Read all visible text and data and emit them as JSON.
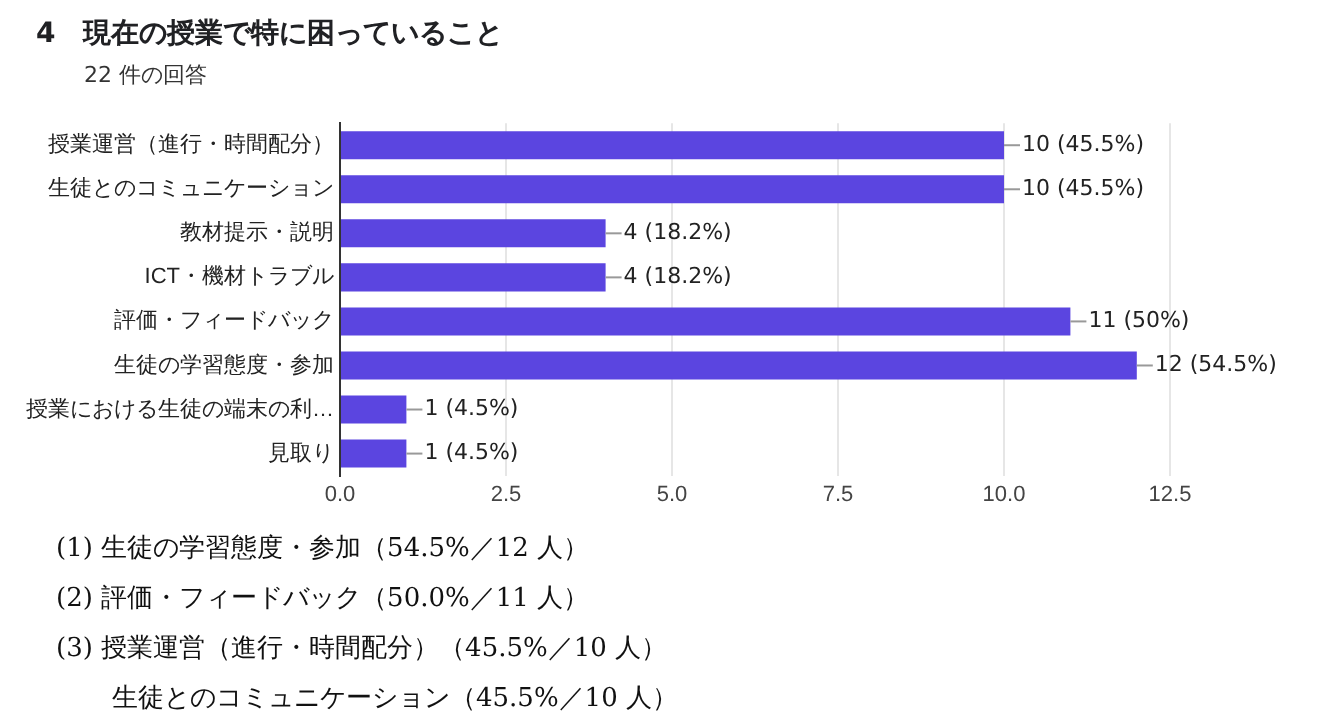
{
  "chart_data": {
    "type": "bar",
    "orientation": "horizontal",
    "title": "4　現在の授業で特に困っていること",
    "subtitle": "22 件の回答",
    "categories": [
      "授業運営（進行・時間配分）",
      "生徒とのコミュニケーション",
      "教材提示・説明",
      "ICT・機材トラブル",
      "評価・フィードバック",
      "生徒の学習態度・参加",
      "授業における生徒の端末の利…",
      "見取り"
    ],
    "values": [
      10,
      10,
      4,
      4,
      11,
      12,
      1,
      1
    ],
    "value_labels": [
      "10 (45.5%)",
      "10 (45.5%)",
      "4 (18.2%)",
      "4 (18.2%)",
      "11 (50%)",
      "12 (54.5%)",
      "1 (4.5%)",
      "1 (4.5%)"
    ],
    "color": "#5b45e0",
    "xlim": [
      0,
      12.5
    ],
    "xticks": [
      {
        "value": 0,
        "label": "0.0"
      },
      {
        "value": 2.5,
        "label": "2.5"
      },
      {
        "value": 5,
        "label": "5.0"
      },
      {
        "value": 7.5,
        "label": "7.5"
      },
      {
        "value": 10,
        "label": "10.0"
      },
      {
        "value": 12.5,
        "label": "12.5"
      }
    ],
    "grid": "x",
    "annotations": [
      "(1)  生徒の学習態度・参加（54.5%／12 人）",
      "(2)  評価・フィードバック（50.0%／11 人）",
      "(3)  授業運営（進行・時間配分）（45.5%／10 人）",
      "生徒とのコミュニケーション（45.5%／10 人）"
    ]
  }
}
